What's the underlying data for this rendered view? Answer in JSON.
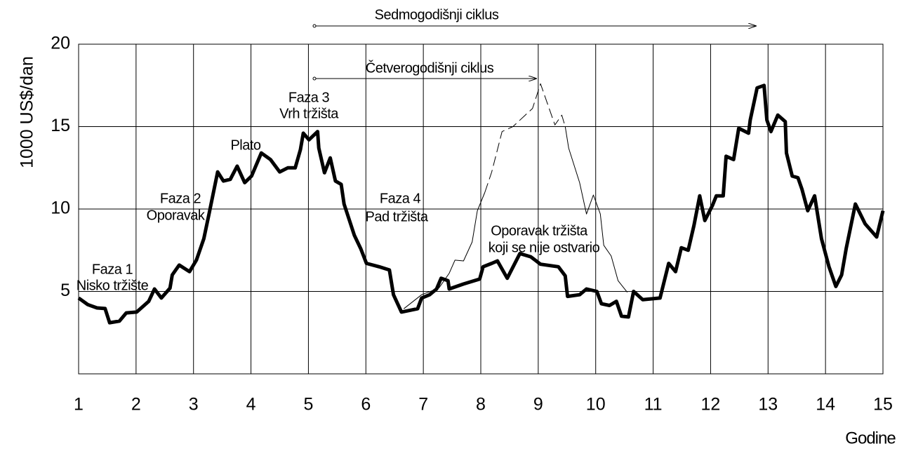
{
  "chart_data": {
    "type": "line",
    "ylabel": "1000 US$/dan",
    "xlabel": "Godine",
    "xlim": [
      1,
      15
    ],
    "xticks": [
      1,
      2,
      3,
      4,
      5,
      6,
      7,
      8,
      9,
      10,
      11,
      12,
      13,
      14,
      15
    ],
    "ylim": [
      0,
      20
    ],
    "yticks": [
      5,
      10,
      15,
      20
    ],
    "grid": true,
    "annotations": [
      "Sedmogodišnji ciklus",
      "Četverogodišnji ciklus",
      "Faza 1",
      "Nisko tržište",
      "Faza 2",
      "Oporavak",
      "Plato",
      "Faza 3",
      "Vrh tržišta",
      "Faza 4",
      "Pad tržišta",
      "Oporavak tržišta",
      "koji se nije ostvario"
    ],
    "series": [
      {
        "color": "#000000",
        "style": "solid",
        "width": 5,
        "x": [
          1.0,
          1.16,
          1.32,
          1.46,
          1.54,
          1.71,
          1.83,
          2.01,
          2.22,
          2.32,
          2.44,
          2.59,
          2.63,
          2.75,
          2.93,
          3.05,
          3.18,
          3.27,
          3.42,
          3.52,
          3.64,
          3.76,
          3.89,
          4.01,
          4.18,
          4.34,
          4.5,
          4.64,
          4.77,
          4.86,
          4.91,
          5.01,
          5.16,
          5.18,
          5.28,
          5.38,
          5.47,
          5.57,
          5.62,
          5.8,
          5.91,
          6.01,
          6.23,
          6.41,
          6.48,
          6.62,
          6.9,
          6.97,
          7.11,
          7.23,
          7.31,
          7.43,
          7.45,
          7.7,
          7.98,
          8.04,
          8.19,
          8.29,
          8.46,
          8.68,
          8.87,
          9.04,
          9.35,
          9.47,
          9.51,
          9.72,
          9.84,
          10.02,
          10.1,
          10.24,
          10.36,
          10.45,
          10.57,
          10.66,
          10.82,
          11.12,
          11.27,
          11.39,
          11.49,
          11.61,
          11.71,
          11.81,
          11.9,
          12.03,
          12.1,
          12.22,
          12.27,
          12.4,
          12.49,
          12.66,
          12.69,
          12.81,
          12.93,
          12.98,
          13.05,
          13.17,
          13.3,
          13.32,
          13.42,
          13.52,
          13.59,
          13.69,
          13.81,
          13.93,
          14.06,
          14.18,
          14.28,
          14.36,
          14.52,
          14.69,
          14.89,
          15.0
        ],
        "values": [
          4.6,
          4.2,
          4.0,
          3.96,
          3.1,
          3.2,
          3.7,
          3.75,
          4.4,
          5.15,
          4.6,
          5.2,
          6.0,
          6.6,
          6.2,
          6.9,
          8.2,
          9.7,
          12.25,
          11.7,
          11.8,
          12.6,
          11.6,
          12.0,
          13.4,
          13.0,
          12.25,
          12.5,
          12.5,
          13.6,
          14.6,
          14.2,
          14.7,
          13.7,
          12.2,
          13.1,
          11.7,
          11.5,
          10.3,
          8.4,
          7.6,
          6.7,
          6.5,
          6.3,
          4.8,
          3.75,
          3.95,
          4.6,
          4.8,
          5.15,
          5.8,
          5.65,
          5.15,
          5.45,
          5.75,
          6.5,
          6.7,
          6.85,
          5.8,
          7.3,
          7.1,
          6.65,
          6.5,
          5.95,
          4.7,
          4.8,
          5.15,
          5.0,
          4.25,
          4.15,
          4.4,
          3.5,
          3.45,
          5.0,
          4.5,
          4.6,
          6.7,
          6.2,
          7.65,
          7.5,
          9.0,
          10.8,
          9.3,
          10.2,
          10.8,
          10.8,
          13.2,
          13.0,
          14.9,
          14.6,
          15.4,
          17.35,
          17.5,
          15.4,
          14.7,
          15.7,
          15.3,
          13.4,
          12.0,
          11.9,
          11.2,
          9.9,
          10.8,
          8.2,
          6.5,
          5.3,
          6.0,
          7.6,
          10.3,
          9.1,
          8.3,
          9.9
        ]
      },
      {
        "color": "#000000",
        "style": "solid",
        "width": 1,
        "x": [
          6.66,
          6.97,
          7.27,
          7.45,
          7.55,
          7.7,
          7.85,
          7.94,
          8.07
        ],
        "values": [
          3.95,
          4.8,
          5.2,
          6.1,
          6.9,
          6.85,
          8.0,
          9.9,
          11.0
        ]
      },
      {
        "color": "#000000",
        "style": "dashed",
        "width": 1,
        "x": [
          8.07,
          8.19,
          8.37,
          8.56,
          8.9,
          9.04,
          9.29,
          9.41,
          9.47
        ],
        "values": [
          11.0,
          12.25,
          14.7,
          15.0,
          16.1,
          17.6,
          15.1,
          15.7,
          15.0
        ]
      },
      {
        "color": "#000000",
        "style": "solid",
        "width": 1,
        "x": [
          9.47,
          9.53,
          9.72,
          9.84,
          9.96,
          10.08,
          10.14,
          10.27,
          10.39,
          10.55
        ],
        "values": [
          15.0,
          13.7,
          11.6,
          9.7,
          10.85,
          9.7,
          7.8,
          7.15,
          5.65,
          4.95
        ]
      }
    ]
  }
}
